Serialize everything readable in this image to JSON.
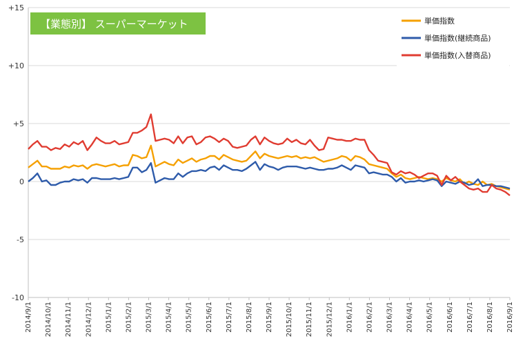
{
  "chart_data": {
    "type": "line",
    "title": "【業態別】 スーパーマーケット",
    "xlabel": "",
    "ylabel": "",
    "ylim": [
      -10,
      15
    ],
    "y_ticks": [
      "+15",
      "+10",
      "+5",
      "0",
      "-5",
      "-10"
    ],
    "x_tick_labels": [
      "2014/9/1",
      "2014/10/1",
      "2014/11/1",
      "2014/12/1",
      "2015/1/1",
      "2015/2/1",
      "2015/3/1",
      "2015/4/1",
      "2015/5/1",
      "2015/6/1",
      "2015/7/1",
      "2015/8/1",
      "2015/9/1",
      "2015/10/1",
      "2015/11/1",
      "2015/12/1",
      "2016/1/1",
      "2016/2/1",
      "2016/3/1",
      "2016/4/1",
      "2016/5/1",
      "2016/6/1",
      "2016/7/1",
      "2016/8/1",
      "2016/9/1"
    ],
    "grid": "horizontal",
    "legend": "top-right",
    "colors": {
      "title_bg": "#7DC242",
      "grid": "#D9D9D9",
      "axis": "#BFBFBF"
    },
    "series": [
      {
        "name": "単価指数",
        "color": "#F5A000",
        "values": [
          1.2,
          1.5,
          1.8,
          1.3,
          1.3,
          1.1,
          1.1,
          1.1,
          1.3,
          1.2,
          1.4,
          1.3,
          1.4,
          1.1,
          1.4,
          1.5,
          1.4,
          1.3,
          1.4,
          1.5,
          1.3,
          1.4,
          1.4,
          2.3,
          2.2,
          2.0,
          2.1,
          3.1,
          1.3,
          1.5,
          1.7,
          1.5,
          1.4,
          1.9,
          1.6,
          1.8,
          2.0,
          1.7,
          1.9,
          2.0,
          2.2,
          2.2,
          1.9,
          2.3,
          2.1,
          1.9,
          1.8,
          1.7,
          1.8,
          2.2,
          2.6,
          2.0,
          2.4,
          2.2,
          2.1,
          2.0,
          2.1,
          2.2,
          2.1,
          2.2,
          2.0,
          2.1,
          2.0,
          2.1,
          1.9,
          1.7,
          1.8,
          1.9,
          2.0,
          2.2,
          2.1,
          1.8,
          2.2,
          2.1,
          1.9,
          1.5,
          1.4,
          1.3,
          1.2,
          1.1,
          0.7,
          0.4,
          0.6,
          0.3,
          0.2,
          0.3,
          0.4,
          0.3,
          0.2,
          0.3,
          0.2,
          0.0,
          0.3,
          0.1,
          0.0,
          0.2,
          -0.2,
          0.0,
          -0.2,
          -0.3,
          0.0,
          -0.3,
          -0.2,
          -0.4,
          -0.5,
          -0.6,
          -0.7
        ]
      },
      {
        "name": "単価指数(継続商品)",
        "color": "#2E5BAA",
        "values": [
          0.0,
          0.3,
          0.7,
          0.0,
          0.1,
          -0.3,
          -0.3,
          -0.1,
          0.0,
          0.0,
          0.2,
          0.1,
          0.2,
          -0.1,
          0.3,
          0.3,
          0.2,
          0.2,
          0.2,
          0.3,
          0.2,
          0.3,
          0.4,
          1.2,
          1.2,
          0.8,
          1.0,
          1.6,
          -0.1,
          0.1,
          0.3,
          0.2,
          0.2,
          0.7,
          0.4,
          0.7,
          0.9,
          0.9,
          1.0,
          0.9,
          1.2,
          1.3,
          1.0,
          1.4,
          1.2,
          1.0,
          1.0,
          0.9,
          1.1,
          1.4,
          1.7,
          1.0,
          1.5,
          1.3,
          1.2,
          1.0,
          1.2,
          1.3,
          1.3,
          1.3,
          1.2,
          1.1,
          1.2,
          1.1,
          1.0,
          1.0,
          1.1,
          1.1,
          1.2,
          1.4,
          1.2,
          1.0,
          1.4,
          1.3,
          1.2,
          0.7,
          0.8,
          0.7,
          0.6,
          0.6,
          0.4,
          0.0,
          0.3,
          -0.1,
          0.0,
          0.0,
          0.1,
          0.0,
          0.1,
          0.2,
          0.1,
          -0.4,
          0.0,
          -0.1,
          -0.2,
          0.0,
          -0.1,
          -0.3,
          -0.2,
          0.2,
          -0.4,
          -0.3,
          -0.3,
          -0.4,
          -0.4,
          -0.5,
          -0.6
        ]
      },
      {
        "name": "単価指数(入替商品)",
        "color": "#E03C31",
        "values": [
          2.8,
          3.2,
          3.5,
          3.0,
          3.0,
          2.7,
          2.9,
          2.8,
          3.2,
          3.0,
          3.4,
          3.2,
          3.5,
          2.7,
          3.2,
          3.8,
          3.5,
          3.3,
          3.3,
          3.5,
          3.2,
          3.3,
          3.4,
          4.2,
          4.2,
          4.4,
          4.7,
          5.8,
          3.5,
          3.6,
          3.7,
          3.6,
          3.3,
          3.9,
          3.3,
          3.8,
          3.9,
          3.2,
          3.4,
          3.8,
          3.9,
          3.7,
          3.4,
          3.7,
          3.5,
          3.0,
          2.9,
          3.0,
          3.1,
          3.6,
          3.9,
          3.2,
          3.8,
          3.5,
          3.3,
          3.2,
          3.3,
          3.7,
          3.4,
          3.6,
          3.3,
          3.2,
          3.6,
          3.1,
          2.7,
          2.8,
          3.8,
          3.7,
          3.6,
          3.6,
          3.5,
          3.5,
          3.7,
          3.6,
          3.6,
          2.7,
          2.3,
          1.8,
          1.7,
          1.6,
          0.8,
          0.6,
          0.9,
          0.7,
          0.8,
          0.6,
          0.3,
          0.5,
          0.7,
          0.7,
          0.5,
          -0.3,
          0.5,
          0.1,
          0.4,
          0.0,
          -0.3,
          -0.6,
          -0.7,
          -0.6,
          -0.9,
          -0.9,
          -0.3,
          -0.6,
          -0.7,
          -0.9,
          -1.2
        ]
      }
    ]
  }
}
